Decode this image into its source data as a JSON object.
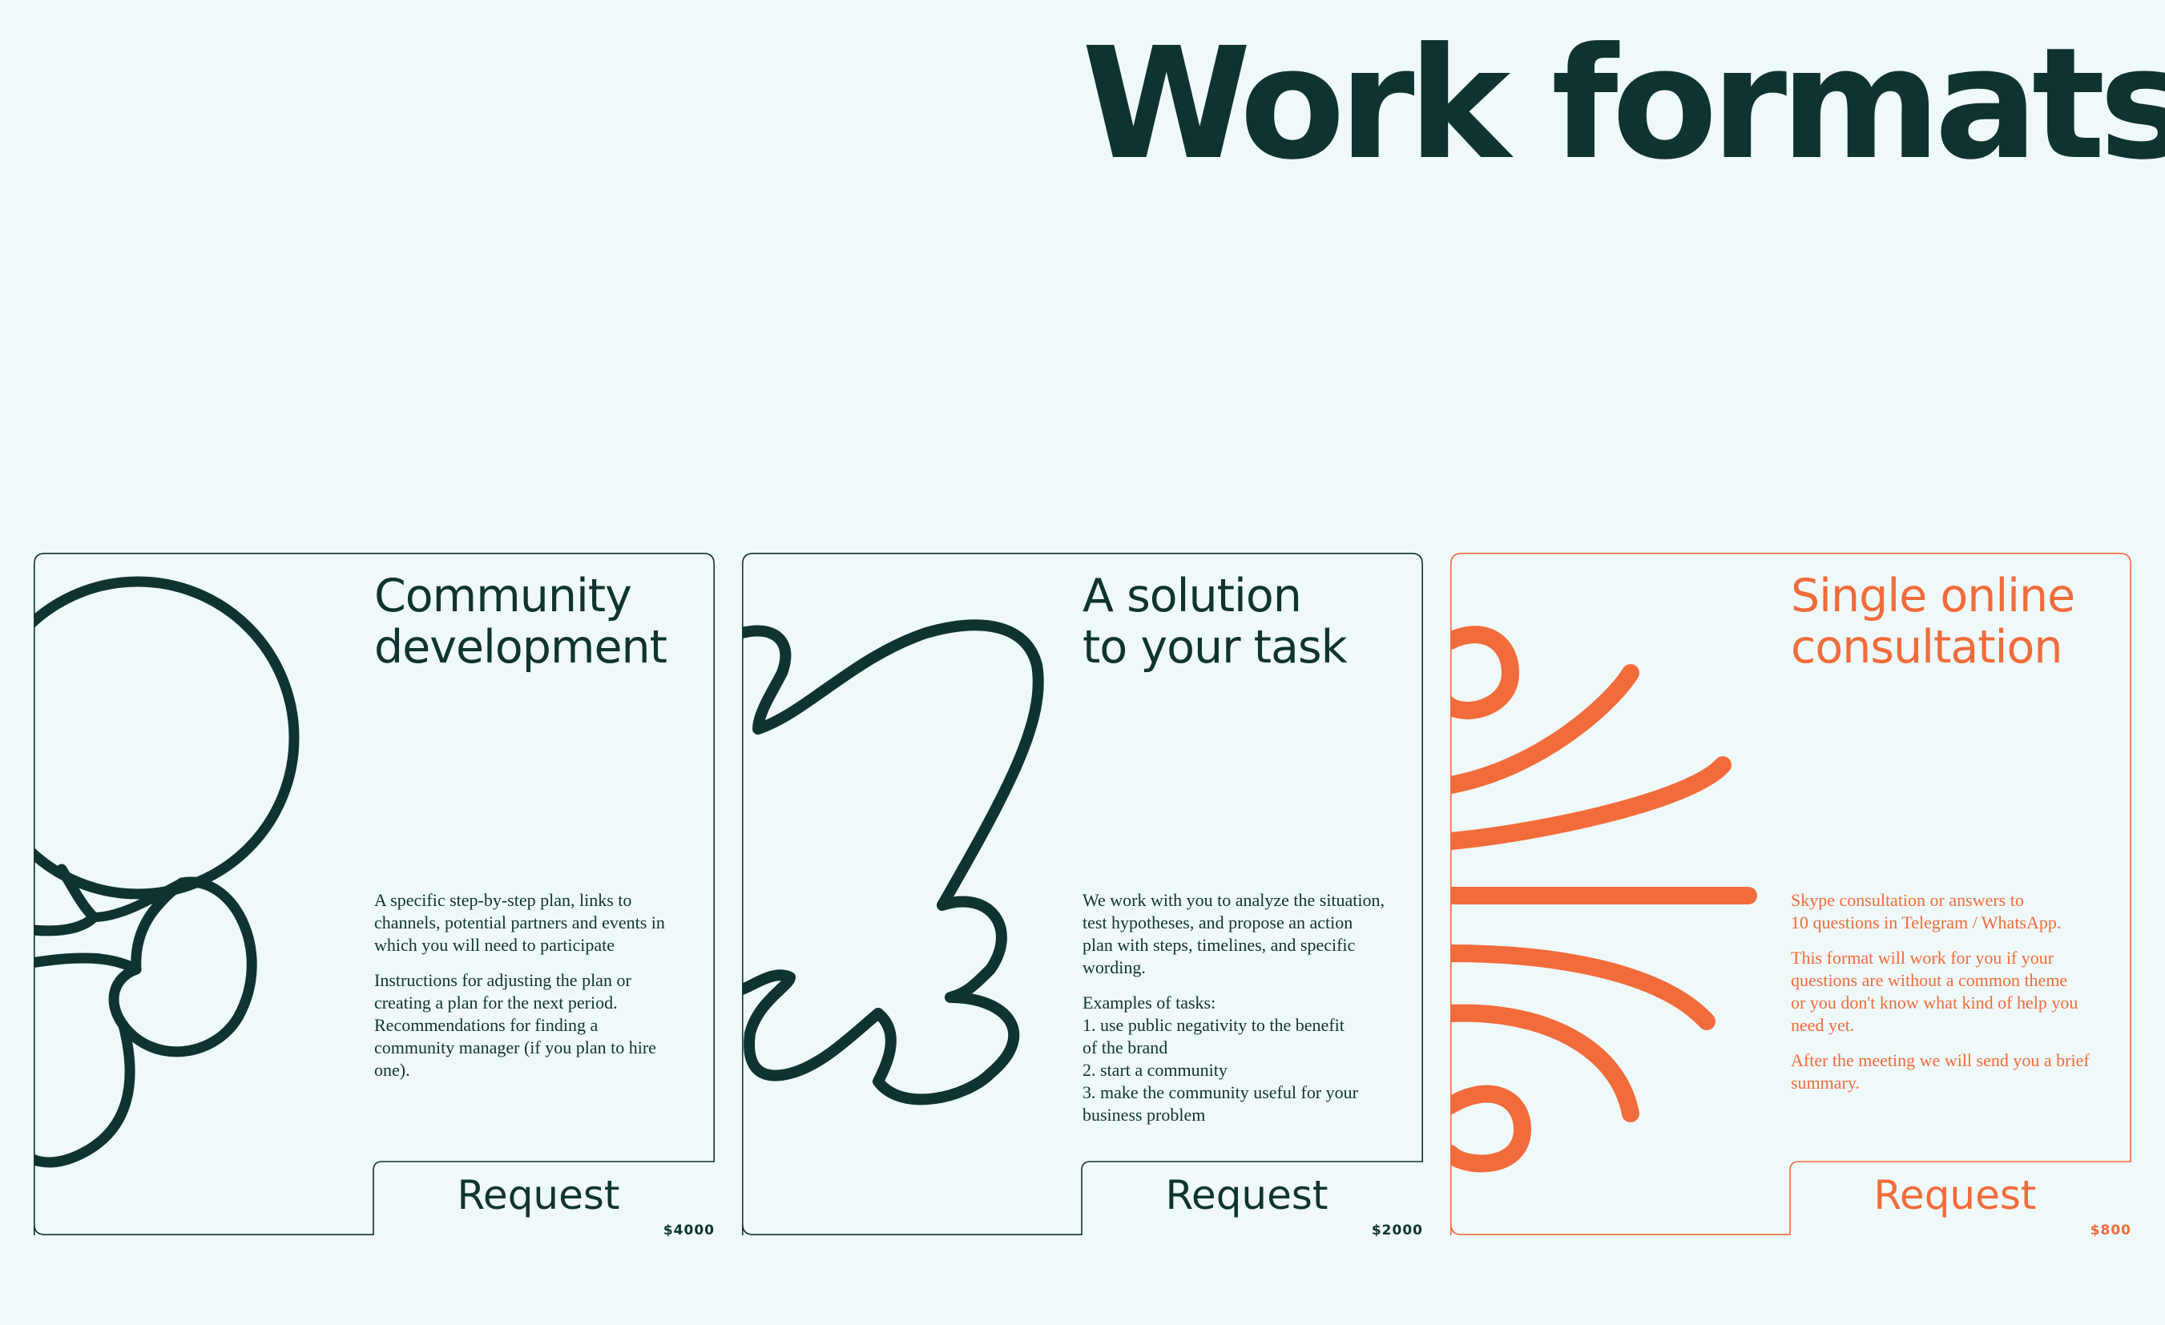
{
  "page": {
    "title": "Work formats"
  },
  "colors": {
    "background": "#eff9f9",
    "dark": "#0f3430",
    "orange": "#f26b3a"
  },
  "cards": [
    {
      "title_lines": [
        "Community",
        "development"
      ],
      "body": [
        [
          "A specific step-by-step plan, links to",
          "channels, potential partners and events in",
          "which you will need to participate"
        ],
        [
          "Instructions for adjusting the plan or",
          "creating a plan for the next period.",
          "Recommendations for finding a",
          "community manager (if you plan to hire",
          "one)."
        ]
      ],
      "button_label": "Request",
      "price": "$4000",
      "accent": "#0f3430",
      "illustration": "circles-flower-icon"
    },
    {
      "title_lines": [
        "A solution",
        "to your task"
      ],
      "body": [
        [
          "We work with you to analyze the situation,",
          "test hypotheses, and propose an action",
          "plan with steps, timelines, and specific",
          "wording."
        ],
        [
          "Examples of tasks:",
          "1. use public negativity to the benefit",
          "of the brand",
          "2. start a community",
          "3. make the community useful for your",
          "business problem"
        ]
      ],
      "button_label": "Request",
      "price": "$2000",
      "accent": "#0f3430",
      "illustration": "cloud-outline-icon"
    },
    {
      "title_lines": [
        "Single online",
        "consultation"
      ],
      "body": [
        [
          "Skype consultation or answers to",
          "10 questions in Telegram / WhatsApp."
        ],
        [
          "This format will work for you if your",
          "questions are without a common theme",
          "or you don't know what kind of help you",
          "need yet."
        ],
        [
          "After the meeting we will send you a brief",
          "summary."
        ]
      ],
      "button_label": "Request",
      "price": "$800",
      "accent": "#f26b3a",
      "illustration": "radiating-lines-icon"
    }
  ]
}
